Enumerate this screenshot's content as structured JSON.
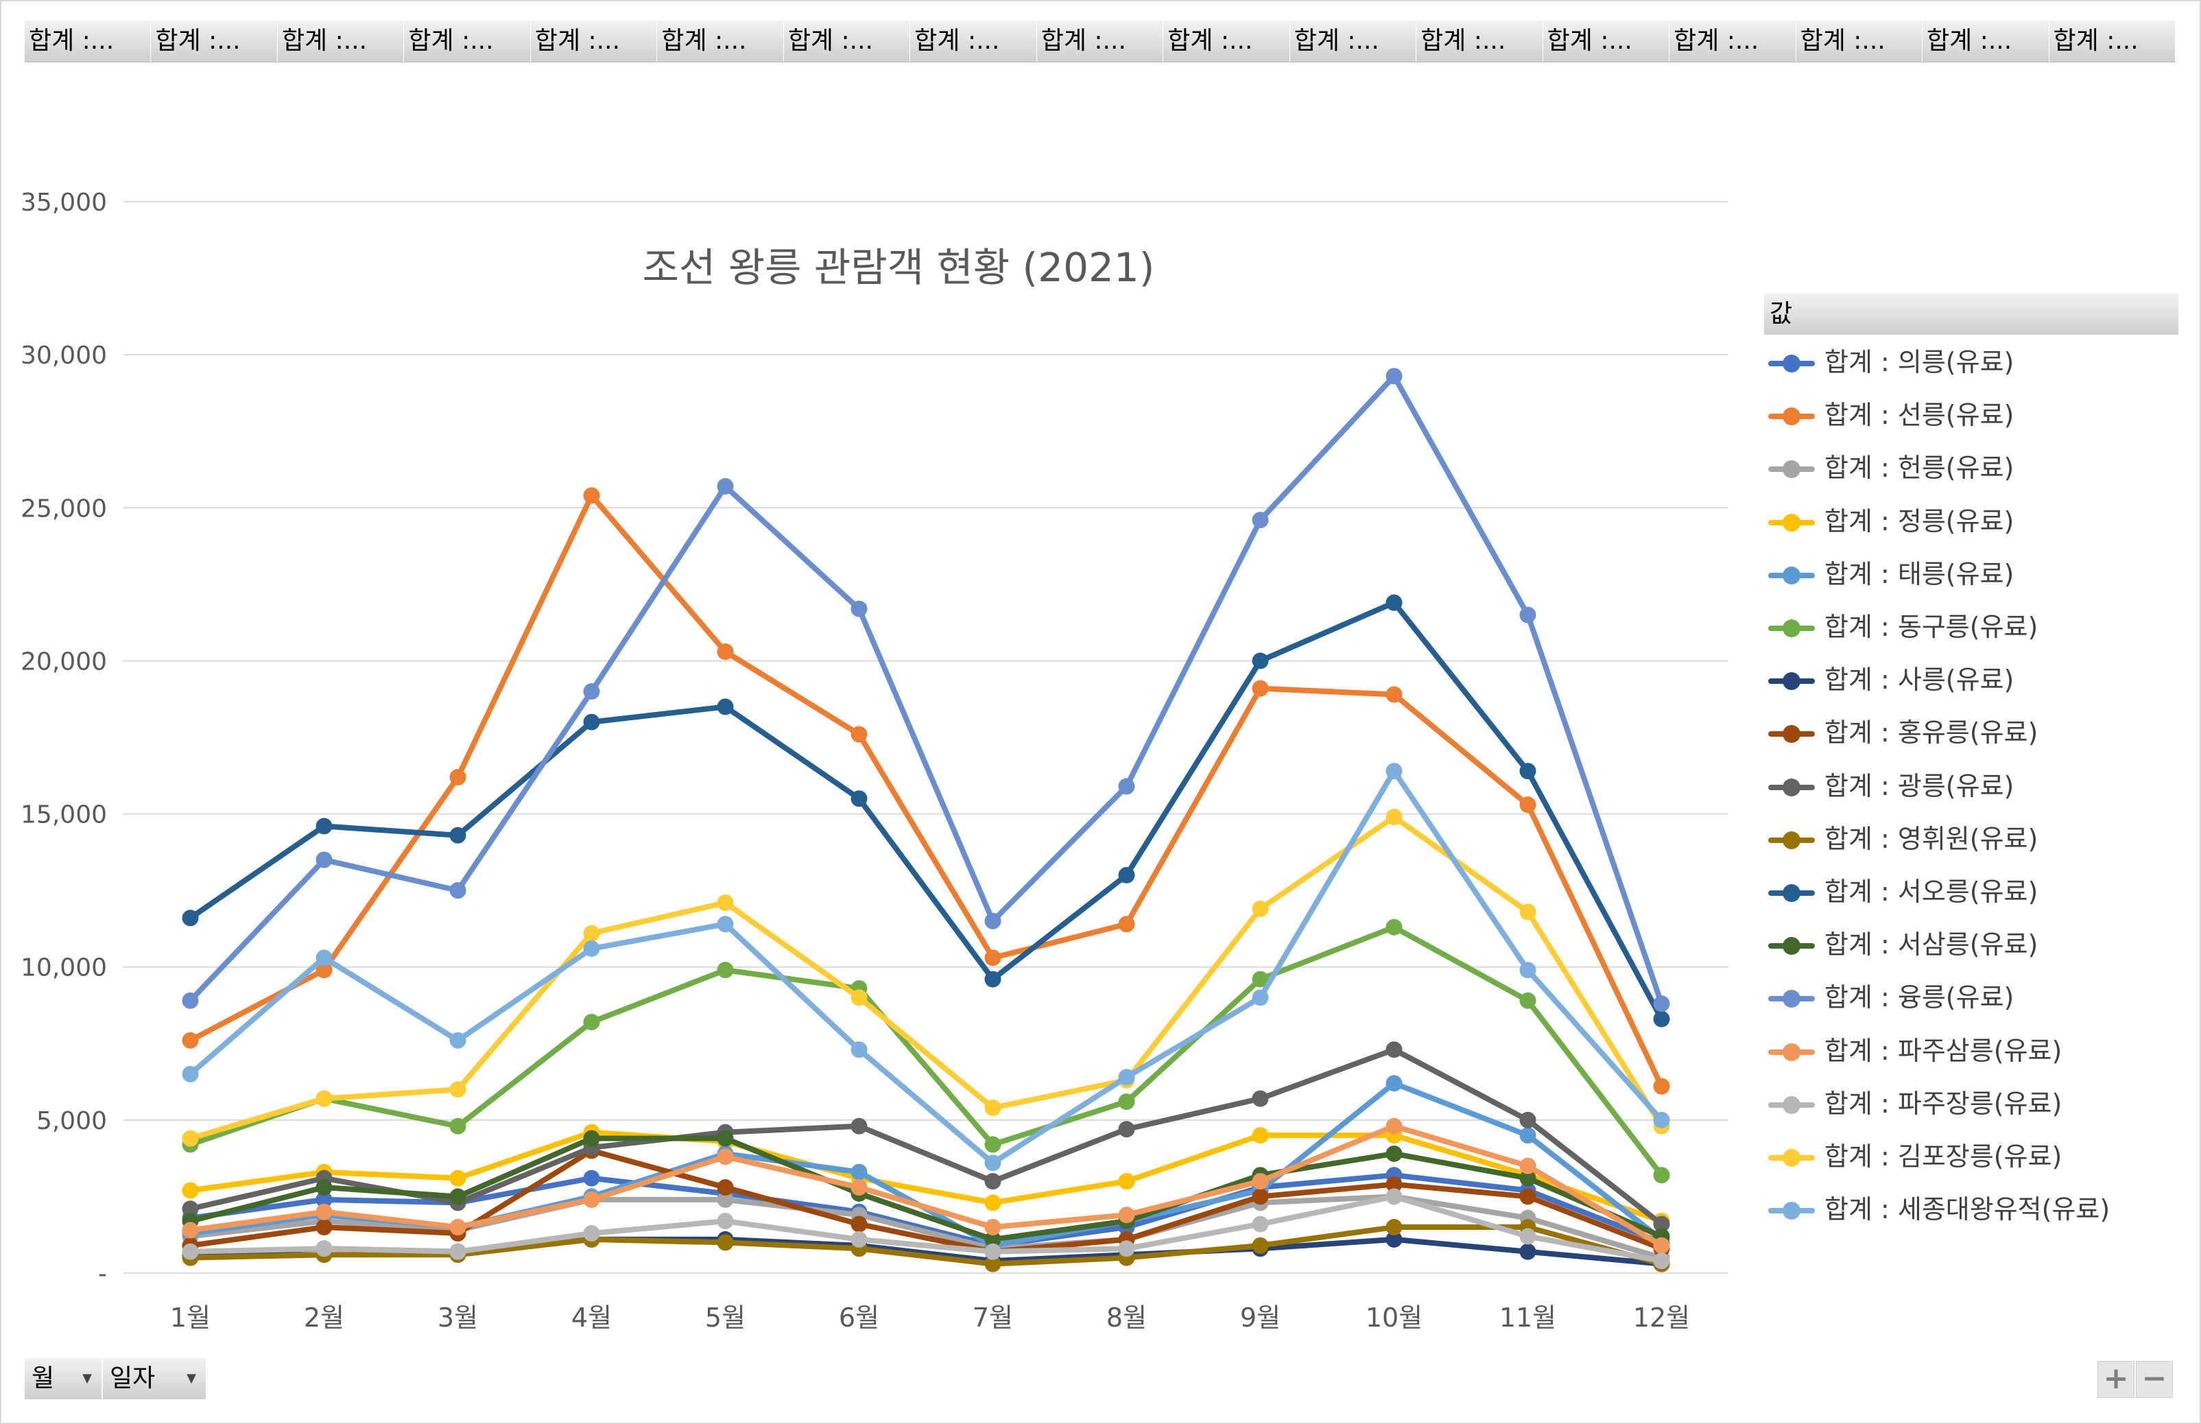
{
  "field_buttons": [
    "합계 :...",
    "합계 :...",
    "합계 :...",
    "합계 :...",
    "합계 :...",
    "합계 :...",
    "합계 :...",
    "합계 :...",
    "합계 :...",
    "합계 :...",
    "합계 :...",
    "합계 :...",
    "합계 :...",
    "합계 :...",
    "합계 :...",
    "합계 :...",
    "합계 :..."
  ],
  "bottom_buttons": {
    "month": "월",
    "day": "일자"
  },
  "zoom": {
    "plus": "+",
    "minus": "−"
  },
  "legend_title": "값",
  "chart_data": {
    "type": "line",
    "title": "조선 왕릉 관람객 현황 (2021)",
    "xlabel": "",
    "ylabel": "",
    "ylim": [
      0,
      35000
    ],
    "yticks": [
      0,
      5000,
      10000,
      15000,
      20000,
      25000,
      30000,
      35000
    ],
    "ytick_labels": [
      "-",
      "5,000",
      "10,000",
      "15,000",
      "20,000",
      "25,000",
      "30,000",
      "35,000"
    ],
    "grid": true,
    "legend": "right",
    "categories": [
      "1월",
      "2월",
      "3월",
      "4월",
      "5월",
      "6월",
      "7월",
      "8월",
      "9월",
      "10월",
      "11월",
      "12월"
    ],
    "series": [
      {
        "name": "합계 : 의릉(유료)",
        "color": "#4472C4",
        "values": [
          1800,
          2400,
          2300,
          3100,
          2600,
          2000,
          900,
          1500,
          2800,
          3200,
          2700,
          1000
        ]
      },
      {
        "name": "합계 : 선릉(유료)",
        "color": "#ED7D31",
        "values": [
          7600,
          9900,
          16200,
          25400,
          20300,
          17600,
          10300,
          11400,
          19100,
          18900,
          15300,
          6100
        ]
      },
      {
        "name": "합계 : 헌릉(유료)",
        "color": "#A5A5A5",
        "values": [
          1200,
          1700,
          1400,
          2400,
          2400,
          1900,
          800,
          1100,
          2300,
          2500,
          1800,
          500
        ]
      },
      {
        "name": "합계 : 정릉(유료)",
        "color": "#FFC000",
        "values": [
          2700,
          3300,
          3100,
          4600,
          4300,
          3100,
          2300,
          3000,
          4500,
          4500,
          3200,
          1700
        ]
      },
      {
        "name": "합계 : 태릉(유료)",
        "color": "#5B9BD5",
        "values": [
          1300,
          1900,
          1500,
          2500,
          3900,
          3300,
          900,
          1700,
          2700,
          6200,
          4500,
          1100
        ]
      },
      {
        "name": "합계 : 동구릉(유료)",
        "color": "#70AD47",
        "values": [
          4200,
          5700,
          4800,
          8200,
          9900,
          9300,
          4200,
          5600,
          9600,
          11300,
          8900,
          3200
        ]
      },
      {
        "name": "합계 : 사릉(유료)",
        "color": "#264478",
        "values": [
          600,
          800,
          700,
          1100,
          1100,
          900,
          400,
          600,
          800,
          1100,
          700,
          300
        ]
      },
      {
        "name": "합계 : 홍유릉(유료)",
        "color": "#9E480E",
        "values": [
          900,
          1500,
          1300,
          4000,
          2800,
          1600,
          700,
          1100,
          2500,
          2900,
          2500,
          800
        ]
      },
      {
        "name": "합계 : 광릉(유료)",
        "color": "#636363",
        "values": [
          2100,
          3100,
          2300,
          4100,
          4600,
          4800,
          3000,
          4700,
          5700,
          7300,
          5000,
          1600
        ]
      },
      {
        "name": "합계 : 영휘원(유료)",
        "color": "#997300",
        "values": [
          500,
          600,
          600,
          1100,
          1000,
          800,
          300,
          500,
          900,
          1500,
          1500,
          300
        ]
      },
      {
        "name": "합계 : 서오릉(유료)",
        "color": "#255E91",
        "values": [
          11600,
          14600,
          14300,
          18000,
          18500,
          15500,
          9600,
          13000,
          20000,
          21900,
          16400,
          8300
        ]
      },
      {
        "name": "합계 : 서삼릉(유료)",
        "color": "#43682B",
        "values": [
          1700,
          2800,
          2500,
          4400,
          4400,
          2600,
          1100,
          1700,
          3200,
          3900,
          3100,
          1200
        ]
      },
      {
        "name": "합계 : 융릉(유료)",
        "color": "#698ED0",
        "values": [
          8900,
          13500,
          12500,
          19000,
          25700,
          21700,
          11500,
          15900,
          24600,
          29300,
          21500,
          8800
        ]
      },
      {
        "name": "합계 : 파주삼릉(유료)",
        "color": "#F1975A",
        "values": [
          1400,
          2000,
          1500,
          2400,
          3800,
          2800,
          1500,
          1900,
          3000,
          4800,
          3500,
          900
        ]
      },
      {
        "name": "합계 : 파주장릉(유료)",
        "color": "#B7B7B7",
        "values": [
          700,
          800,
          700,
          1300,
          1700,
          1100,
          700,
          800,
          1600,
          2500,
          1200,
          400
        ]
      },
      {
        "name": "합계 : 김포장릉(유료)",
        "color": "#FFCD33",
        "values": [
          4400,
          5700,
          6000,
          11100,
          12100,
          9000,
          5400,
          6300,
          11900,
          14900,
          11800,
          4800
        ]
      },
      {
        "name": "합계 : 세종대왕유적(유료)",
        "color": "#7CAFDD",
        "values": [
          6500,
          10300,
          7600,
          10600,
          11400,
          7300,
          3600,
          6400,
          9000,
          16400,
          9900,
          5000
        ]
      }
    ]
  }
}
